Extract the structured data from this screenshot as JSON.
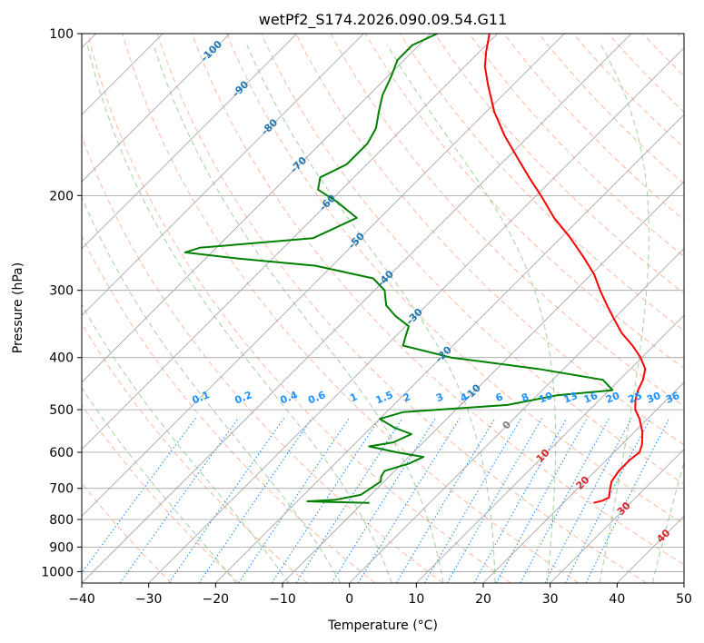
{
  "chart_data": {
    "type": "skew-t",
    "title": "wetPf2_S174.2026.090.09.54.G11",
    "xlabel": "Temperature (°C)",
    "ylabel": "Pressure (hPa)",
    "xlim": [
      -40,
      50
    ],
    "ylim": [
      1050,
      100
    ],
    "x_ticks": [
      -40,
      -30,
      -20,
      -10,
      0,
      10,
      20,
      30,
      40,
      50
    ],
    "x_tick_labels": [
      "−40",
      "−30",
      "−20",
      "−10",
      "0",
      "10",
      "20",
      "30",
      "40",
      "50"
    ],
    "y_ticks": [
      1000,
      900,
      800,
      700,
      600,
      500,
      400,
      300,
      200,
      100
    ],
    "y_tick_labels": [
      "1000",
      "900",
      "800",
      "700",
      "600",
      "500",
      "400",
      "300",
      "200",
      "100"
    ],
    "y_scale": "log",
    "grid": true,
    "colors": {
      "temperature": "#ff0000",
      "dewpoint": "#008000",
      "isotherm": "#a0a0a0",
      "dry_adiabat": "#ff7f50",
      "moist_adiabat": "#2ca02c",
      "mixing_ratio": "#1e90ff",
      "isotherm_label": "#1f77b4",
      "temp_label": "#d62728",
      "zero_label": "#808080"
    },
    "series": [
      {
        "name": "temperature",
        "points": [
          {
            "p": 745,
            "t": 24.5
          },
          {
            "p": 738,
            "t": 25.5
          },
          {
            "p": 728,
            "t": 26.0
          },
          {
            "p": 700,
            "t": 24.8
          },
          {
            "p": 680,
            "t": 24.0
          },
          {
            "p": 650,
            "t": 23.5
          },
          {
            "p": 620,
            "t": 23.5
          },
          {
            "p": 600,
            "t": 23.8
          },
          {
            "p": 580,
            "t": 23.0
          },
          {
            "p": 550,
            "t": 21.2
          },
          {
            "p": 520,
            "t": 18.8
          },
          {
            "p": 500,
            "t": 16.8
          },
          {
            "p": 480,
            "t": 15.4
          },
          {
            "p": 460,
            "t": 14.3
          },
          {
            "p": 440,
            "t": 13.5
          },
          {
            "p": 420,
            "t": 12.2
          },
          {
            "p": 400,
            "t": 9.8
          },
          {
            "p": 380,
            "t": 6.8
          },
          {
            "p": 360,
            "t": 3.3
          },
          {
            "p": 340,
            "t": 0.2
          },
          {
            "p": 320,
            "t": -3.0
          },
          {
            "p": 300,
            "t": -6.3
          },
          {
            "p": 280,
            "t": -9.6
          },
          {
            "p": 260,
            "t": -13.8
          },
          {
            "p": 240,
            "t": -18.5
          },
          {
            "p": 220,
            "t": -24.0
          },
          {
            "p": 200,
            "t": -29.3
          },
          {
            "p": 185,
            "t": -33.8
          },
          {
            "p": 170,
            "t": -38.5
          },
          {
            "p": 155,
            "t": -43.6
          },
          {
            "p": 140,
            "t": -48.7
          },
          {
            "p": 125,
            "t": -53.6
          },
          {
            "p": 115,
            "t": -57.0
          },
          {
            "p": 108,
            "t": -59.0
          },
          {
            "p": 100,
            "t": -61.2
          }
        ]
      },
      {
        "name": "dewpoint",
        "points": [
          {
            "p": 745,
            "t": -9.0
          },
          {
            "p": 742,
            "t": -15.0
          },
          {
            "p": 740,
            "t": -18.5
          },
          {
            "p": 735,
            "t": -14.5
          },
          {
            "p": 720,
            "t": -11.5
          },
          {
            "p": 700,
            "t": -11.0
          },
          {
            "p": 680,
            "t": -10.5
          },
          {
            "p": 665,
            "t": -11.2
          },
          {
            "p": 650,
            "t": -11.5
          },
          {
            "p": 630,
            "t": -9.0
          },
          {
            "p": 612,
            "t": -7.8
          },
          {
            "p": 600,
            "t": -12.5
          },
          {
            "p": 585,
            "t": -17.5
          },
          {
            "p": 575,
            "t": -14.5
          },
          {
            "p": 555,
            "t": -13.0
          },
          {
            "p": 540,
            "t": -16.5
          },
          {
            "p": 520,
            "t": -20.0
          },
          {
            "p": 505,
            "t": -17.5
          },
          {
            "p": 490,
            "t": -3.0
          },
          {
            "p": 470,
            "t": 3.0
          },
          {
            "p": 460,
            "t": 10.5
          },
          {
            "p": 440,
            "t": 7.5
          },
          {
            "p": 420,
            "t": -3.8
          },
          {
            "p": 400,
            "t": -18.5
          },
          {
            "p": 380,
            "t": -27.5
          },
          {
            "p": 365,
            "t": -28.5
          },
          {
            "p": 350,
            "t": -29.5
          },
          {
            "p": 335,
            "t": -33.0
          },
          {
            "p": 320,
            "t": -36.0
          },
          {
            "p": 300,
            "t": -38.5
          },
          {
            "p": 285,
            "t": -42.0
          },
          {
            "p": 270,
            "t": -52.5
          },
          {
            "p": 262,
            "t": -65.0
          },
          {
            "p": 255,
            "t": -74.0
          },
          {
            "p": 250,
            "t": -72.5
          },
          {
            "p": 240,
            "t": -57.0
          },
          {
            "p": 220,
            "t": -53.5
          },
          {
            "p": 205,
            "t": -59.0
          },
          {
            "p": 195,
            "t": -63.5
          },
          {
            "p": 185,
            "t": -65.0
          },
          {
            "p": 175,
            "t": -63.0
          },
          {
            "p": 160,
            "t": -63.0
          },
          {
            "p": 150,
            "t": -64.0
          },
          {
            "p": 140,
            "t": -66.0
          },
          {
            "p": 130,
            "t": -68.0
          },
          {
            "p": 120,
            "t": -69.5
          },
          {
            "p": 112,
            "t": -71.0
          },
          {
            "p": 105,
            "t": -71.0
          },
          {
            "p": 100,
            "t": -69.0
          }
        ]
      }
    ],
    "isotherm_labels": [
      "-100",
      "-90",
      "-80",
      "-70",
      "-60",
      "-50",
      "-40",
      "-30",
      "-20",
      "-10"
    ],
    "temperature_labels": [
      "10",
      "20",
      "30",
      "40"
    ],
    "zero_label": "0",
    "mixing_ratio_labels": [
      "0.1",
      "0.2",
      "0.4",
      "0.6",
      "1",
      "1.5",
      "2",
      "3",
      "4",
      "6",
      "8",
      "10",
      "13",
      "16",
      "20",
      "25",
      "30",
      "36"
    ]
  }
}
